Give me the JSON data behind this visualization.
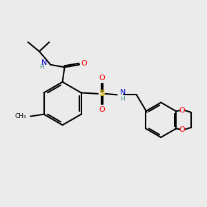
{
  "bg_color": "#ebebeb",
  "colors": {
    "N": "#0000cc",
    "O": "#ff0000",
    "S": "#ccaa00",
    "H": "#4a9090",
    "C": "#000000"
  }
}
